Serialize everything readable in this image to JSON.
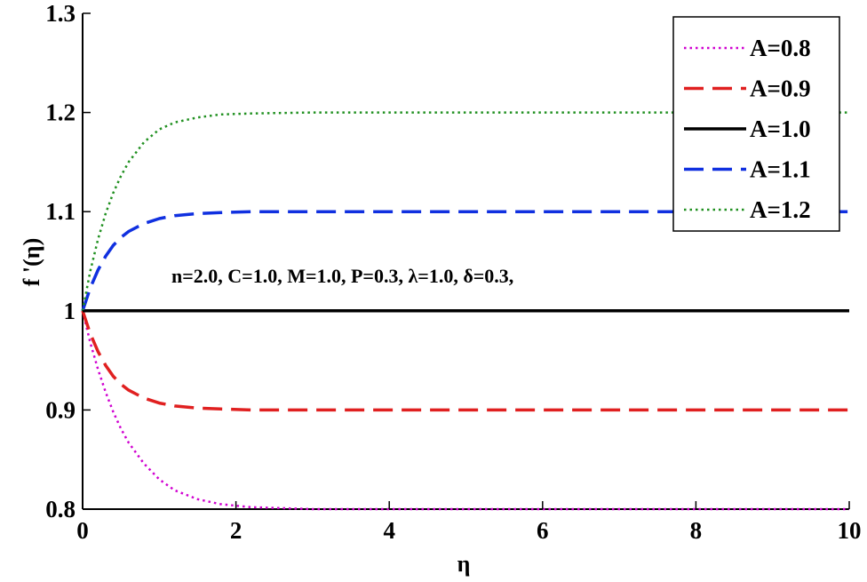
{
  "chart_data": {
    "type": "line",
    "title": "",
    "xlabel": "η",
    "ylabel": "f '(η)",
    "xlim": [
      0,
      10
    ],
    "ylim": [
      0.8,
      1.3
    ],
    "xticks": [
      0,
      2,
      4,
      6,
      8,
      10
    ],
    "yticks": [
      0.8,
      0.9,
      1,
      1.1,
      1.2,
      1.3
    ],
    "xtick_labels": [
      "0",
      "2",
      "4",
      "6",
      "8",
      "10"
    ],
    "ytick_labels": [
      "0.8",
      "0.9",
      "1",
      "1.1",
      "1.2",
      "1.3"
    ],
    "grid": false,
    "legend_position": "top-right",
    "annotation": "n=2.0, C=1.0, M=1.0, P=0.3, λ=1.0, δ=0.3,",
    "series": [
      {
        "name": "A=0.8",
        "color": "#d000d0",
        "style": "dotted",
        "x": [
          0,
          0.1,
          0.2,
          0.3,
          0.4,
          0.5,
          0.6,
          0.8,
          1.0,
          1.2,
          1.5,
          1.8,
          2.2,
          3,
          4,
          5,
          6,
          7,
          8,
          9,
          10
        ],
        "y": [
          1.0,
          0.968,
          0.941,
          0.918,
          0.898,
          0.881,
          0.867,
          0.846,
          0.83,
          0.819,
          0.81,
          0.805,
          0.802,
          0.8,
          0.8,
          0.8,
          0.8,
          0.8,
          0.8,
          0.8,
          0.8
        ]
      },
      {
        "name": "A=0.9",
        "color": "#e02020",
        "style": "dashed",
        "x": [
          0,
          0.1,
          0.2,
          0.3,
          0.4,
          0.5,
          0.6,
          0.8,
          1.0,
          1.2,
          1.5,
          1.8,
          2.2,
          3,
          4,
          5,
          6,
          7,
          8,
          9,
          10
        ],
        "y": [
          1.0,
          0.977,
          0.959,
          0.945,
          0.934,
          0.926,
          0.92,
          0.912,
          0.907,
          0.904,
          0.902,
          0.901,
          0.9,
          0.9,
          0.9,
          0.9,
          0.9,
          0.9,
          0.9,
          0.9,
          0.9
        ]
      },
      {
        "name": "A=1.0",
        "color": "#000000",
        "style": "solid",
        "x": [
          0,
          10
        ],
        "y": [
          1.0,
          1.0
        ]
      },
      {
        "name": "A=1.1",
        "color": "#1030e0",
        "style": "dashed",
        "x": [
          0,
          0.1,
          0.2,
          0.3,
          0.4,
          0.5,
          0.6,
          0.8,
          1.0,
          1.2,
          1.5,
          1.8,
          2.2,
          3,
          4,
          5,
          6,
          7,
          8,
          9,
          10
        ],
        "y": [
          1.0,
          1.023,
          1.041,
          1.055,
          1.066,
          1.074,
          1.08,
          1.088,
          1.093,
          1.096,
          1.098,
          1.099,
          1.1,
          1.1,
          1.1,
          1.1,
          1.1,
          1.1,
          1.1,
          1.1,
          1.1
        ]
      },
      {
        "name": "A=1.2",
        "color": "#209020",
        "style": "dotted",
        "x": [
          0,
          0.1,
          0.2,
          0.3,
          0.4,
          0.5,
          0.6,
          0.8,
          1.0,
          1.2,
          1.5,
          1.8,
          2.2,
          3,
          4,
          5,
          6,
          7,
          8,
          9,
          10
        ],
        "y": [
          1.0,
          1.04,
          1.072,
          1.098,
          1.119,
          1.136,
          1.15,
          1.17,
          1.183,
          1.19,
          1.195,
          1.198,
          1.199,
          1.2,
          1.2,
          1.2,
          1.2,
          1.2,
          1.2,
          1.2,
          1.2
        ]
      }
    ]
  }
}
